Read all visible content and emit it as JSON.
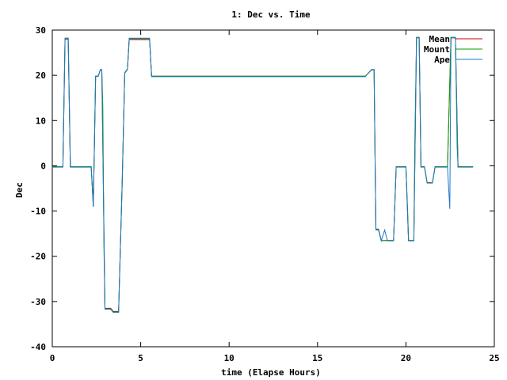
{
  "chart_data": {
    "type": "line",
    "title": "1: Dec vs. Time",
    "xlabel": "time (Elapse Hours)",
    "ylabel": "Dec",
    "xlim": [
      0,
      25
    ],
    "ylim": [
      -40,
      30
    ],
    "x_ticks": [
      0,
      5,
      10,
      15,
      20,
      25
    ],
    "y_ticks": [
      -40,
      -30,
      -20,
      -10,
      0,
      10,
      20,
      30
    ],
    "grid": false,
    "legend_position": "top-right",
    "series": [
      {
        "name": "Mean",
        "color": "#d00000",
        "points": [
          [
            0,
            -0.2
          ],
          [
            0.6,
            -0.2
          ],
          [
            0.72,
            28
          ],
          [
            0.9,
            28
          ],
          [
            1.02,
            -0.2
          ],
          [
            2.2,
            -0.2
          ],
          [
            2.32,
            -9
          ],
          [
            2.45,
            19.8
          ],
          [
            2.6,
            19.8
          ],
          [
            2.72,
            21.2
          ],
          [
            2.8,
            21.2
          ],
          [
            2.98,
            -31.5
          ],
          [
            3.3,
            -31.5
          ],
          [
            3.45,
            -32.2
          ],
          [
            3.75,
            -32.2
          ],
          [
            3.95,
            -4
          ],
          [
            4.1,
            20.5
          ],
          [
            4.25,
            21.3
          ],
          [
            4.35,
            27.9
          ],
          [
            5.5,
            27.9
          ],
          [
            5.62,
            19.8
          ],
          [
            5.95,
            19.8
          ],
          [
            17.7,
            19.8
          ],
          [
            18.05,
            21.2
          ],
          [
            18.2,
            21.2
          ],
          [
            18.3,
            -14
          ],
          [
            18.45,
            -14
          ],
          [
            18.6,
            -16.5
          ],
          [
            19.3,
            -16.5
          ],
          [
            19.45,
            -0.2
          ],
          [
            20.0,
            -0.2
          ],
          [
            20.15,
            -16.5
          ],
          [
            20.45,
            -16.5
          ],
          [
            20.6,
            28.3
          ],
          [
            20.75,
            28.3
          ],
          [
            20.85,
            -0.2
          ],
          [
            21.05,
            -0.2
          ],
          [
            21.2,
            -3.7
          ],
          [
            21.5,
            -3.7
          ],
          [
            21.65,
            -0.2
          ],
          [
            22.35,
            -0.2
          ],
          [
            22.55,
            28.3
          ],
          [
            22.8,
            28.3
          ],
          [
            22.95,
            -0.2
          ],
          [
            23.8,
            -0.2
          ]
        ]
      },
      {
        "name": "Mount",
        "color": "#00a000",
        "points": [
          [
            0,
            -0.2
          ],
          [
            0.6,
            -0.2
          ],
          [
            0.72,
            28.2
          ],
          [
            0.9,
            28.2
          ],
          [
            1.02,
            -0.2
          ],
          [
            2.2,
            -0.2
          ],
          [
            2.32,
            -9
          ],
          [
            2.45,
            19.8
          ],
          [
            2.6,
            19.8
          ],
          [
            2.72,
            21.2
          ],
          [
            2.8,
            21.2
          ],
          [
            2.86,
            13
          ],
          [
            2.92,
            -18
          ],
          [
            2.98,
            -31.6
          ],
          [
            3.3,
            -31.6
          ],
          [
            3.45,
            -32.3
          ],
          [
            3.75,
            -32.3
          ],
          [
            3.95,
            -4
          ],
          [
            4.1,
            20.5
          ],
          [
            4.25,
            21.3
          ],
          [
            4.35,
            28.1
          ],
          [
            5.5,
            28.1
          ],
          [
            5.62,
            19.8
          ],
          [
            5.95,
            19.8
          ],
          [
            17.7,
            19.8
          ],
          [
            18.05,
            21.2
          ],
          [
            18.2,
            21.2
          ],
          [
            18.3,
            -14
          ],
          [
            18.45,
            -14
          ],
          [
            18.6,
            -16.5
          ],
          [
            19.3,
            -16.5
          ],
          [
            19.45,
            -0.2
          ],
          [
            20.0,
            -0.2
          ],
          [
            20.1,
            -10
          ],
          [
            20.15,
            -16.5
          ],
          [
            20.45,
            -16.5
          ],
          [
            20.5,
            5
          ],
          [
            20.6,
            28.4
          ],
          [
            20.75,
            28.4
          ],
          [
            20.85,
            -0.2
          ],
          [
            21.05,
            -0.2
          ],
          [
            21.2,
            -3.8
          ],
          [
            21.5,
            -3.8
          ],
          [
            21.65,
            -0.2
          ],
          [
            22.35,
            -0.2
          ],
          [
            22.55,
            28.4
          ],
          [
            22.8,
            28.4
          ],
          [
            22.9,
            4
          ],
          [
            22.95,
            -0.2
          ],
          [
            23.8,
            -0.2
          ]
        ]
      },
      {
        "name": "Ape",
        "color": "#1e78c8",
        "points": [
          [
            0,
            -0.3
          ],
          [
            0.6,
            -0.3
          ],
          [
            0.72,
            28.2
          ],
          [
            0.9,
            28.2
          ],
          [
            1.02,
            -0.3
          ],
          [
            2.2,
            -0.3
          ],
          [
            2.32,
            -9
          ],
          [
            2.45,
            19.8
          ],
          [
            2.6,
            19.8
          ],
          [
            2.72,
            21.3
          ],
          [
            2.8,
            21.3
          ],
          [
            2.98,
            -31.7
          ],
          [
            3.3,
            -31.7
          ],
          [
            3.45,
            -32.4
          ],
          [
            3.75,
            -32.4
          ],
          [
            3.95,
            -3.8
          ],
          [
            4.1,
            20.6
          ],
          [
            4.25,
            21.4
          ],
          [
            4.35,
            28.2
          ],
          [
            5.5,
            28.2
          ],
          [
            5.62,
            19.7
          ],
          [
            5.95,
            19.7
          ],
          [
            17.7,
            19.7
          ],
          [
            18.05,
            21.3
          ],
          [
            18.2,
            21.3
          ],
          [
            18.3,
            -14.2
          ],
          [
            18.45,
            -14.2
          ],
          [
            18.6,
            -16.6
          ],
          [
            18.8,
            -14.2
          ],
          [
            18.95,
            -16.6
          ],
          [
            19.3,
            -16.6
          ],
          [
            19.45,
            -0.3
          ],
          [
            20.0,
            -0.3
          ],
          [
            20.15,
            -16.6
          ],
          [
            20.45,
            -16.6
          ],
          [
            20.6,
            28.3
          ],
          [
            20.75,
            28.3
          ],
          [
            20.85,
            -0.3
          ],
          [
            21.05,
            -0.3
          ],
          [
            21.2,
            -3.8
          ],
          [
            21.5,
            -3.8
          ],
          [
            21.65,
            -0.3
          ],
          [
            22.35,
            -0.3
          ],
          [
            22.48,
            -9.5
          ],
          [
            22.55,
            28.3
          ],
          [
            22.8,
            28.3
          ],
          [
            22.95,
            -0.3
          ],
          [
            23.8,
            -0.3
          ]
        ]
      }
    ]
  }
}
